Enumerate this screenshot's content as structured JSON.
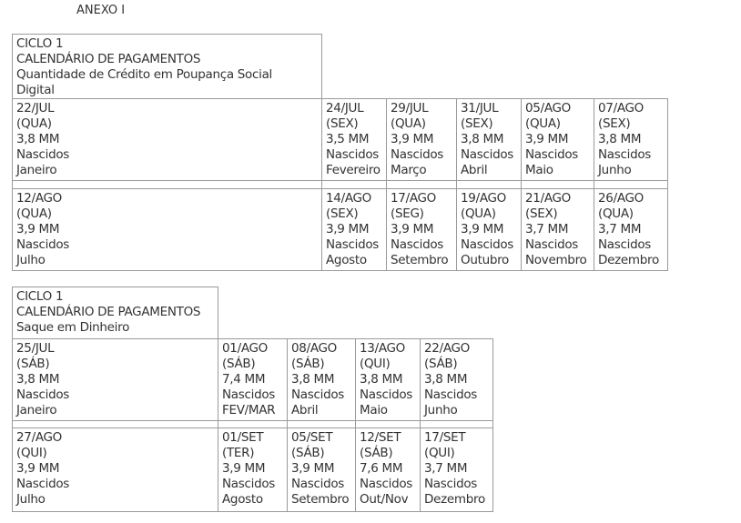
{
  "title": "ANEXO I",
  "tables": [
    {
      "header": [
        "CICLO 1",
        "CALENDÁRIO DE PAGAMENTOS",
        "Quantidade de Crédito em Poupança Social",
        "Digital"
      ],
      "rows": [
        [
          [
            "22/JUL",
            "(QUA)",
            "3,8 MM",
            "Nascidos",
            "Janeiro"
          ],
          [
            "24/JUL",
            "(SEX)",
            "3,5 MM",
            "Nascidos",
            "Fevereiro"
          ],
          [
            "29/JUL",
            "(QUA)",
            "3,9 MM",
            "Nascidos",
            "Março"
          ],
          [
            "31/JUL",
            "(SEX)",
            "3,8 MM",
            "Nascidos",
            "Abril"
          ],
          [
            "05/AGO",
            "(QUA)",
            "3,9 MM",
            "Nascidos",
            "Maio"
          ],
          [
            "07/AGO",
            "(SEX)",
            "3,8 MM",
            "Nascidos",
            "Junho"
          ]
        ],
        [
          [
            "12/AGO",
            "(QUA)",
            "3,9 MM",
            "Nascidos",
            "Julho"
          ],
          [
            "14/AGO",
            "(SEX)",
            "3,9 MM",
            "Nascidos",
            "Agosto"
          ],
          [
            "17/AGO",
            "(SEG)",
            "3,9 MM",
            "Nascidos",
            "Setembro"
          ],
          [
            "19/AGO",
            "(QUA)",
            "3,9 MM",
            "Nascidos",
            "Outubro"
          ],
          [
            "21/AGO",
            "(SEX)",
            "3,7 MM",
            "Nascidos",
            "Novembro"
          ],
          [
            "26/AGO",
            "(QUA)",
            "3,7 MM",
            "Nascidos",
            "Dezembro"
          ]
        ]
      ]
    },
    {
      "header": [
        "CICLO 1",
        "CALENDÁRIO DE PAGAMENTOS",
        "Saque em Dinheiro"
      ],
      "rows": [
        [
          [
            "25/JUL",
            "(SÁB)",
            "3,8 MM",
            "Nascidos",
            "Janeiro"
          ],
          [
            "01/AGO",
            "(SÁB)",
            "7,4 MM",
            "Nascidos",
            "FEV/MAR"
          ],
          [
            "08/AGO",
            "(SÁB)",
            "3,8 MM",
            "Nascidos",
            "Abril"
          ],
          [
            "13/AGO",
            "(QUI)",
            "3,8 MM",
            "Nascidos",
            "Maio"
          ],
          [
            "22/AGO",
            "(SÁB)",
            "3,8 MM",
            "Nascidos",
            "Junho"
          ]
        ],
        [
          [
            "27/AGO",
            "(QUI)",
            "3,9 MM",
            "Nascidos",
            "Julho"
          ],
          [
            "01/SET",
            "(TER)",
            "3,9 MM",
            "Nascidos",
            "Agosto"
          ],
          [
            "05/SET",
            "(SÁB)",
            "3,9 MM",
            "Nascidos",
            "Setembro"
          ],
          [
            "12/SET",
            "(SÁB)",
            "7,6 MM",
            "Nascidos",
            "Out/Nov"
          ],
          [
            "17/SET",
            "(QUI)",
            "3,7 MM",
            "Nascidos",
            "Dezembro"
          ]
        ]
      ]
    }
  ]
}
